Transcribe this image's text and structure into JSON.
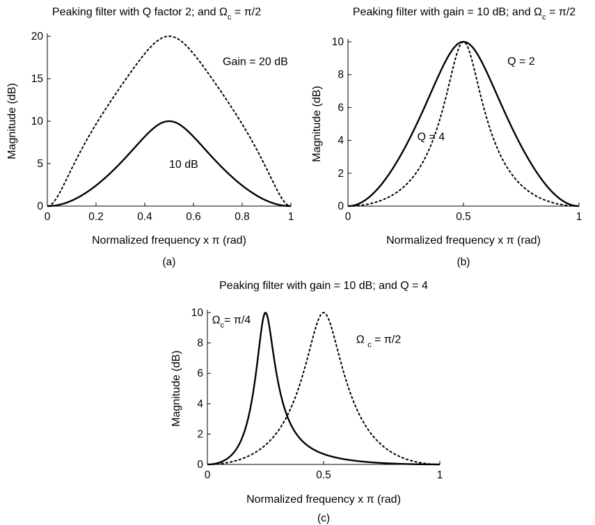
{
  "chart_data": [
    {
      "id": "a",
      "type": "line",
      "title": "Peaking filter with Q factor 2; and Ωc = π/2",
      "title_parts": {
        "pre": "Peaking filter with Q factor 2; and Ω",
        "sub": "c",
        "post": " = π/2"
      },
      "xlabel": "Normalized frequency x π (rad)",
      "ylabel": "Magnitude (dB)",
      "caption": "(a)",
      "xlim": [
        0,
        1
      ],
      "ylim": [
        0,
        20
      ],
      "xticks": [
        0,
        0.2,
        0.4,
        0.6,
        0.8,
        1
      ],
      "xtick_labels": [
        "0",
        "0.2",
        "0.4",
        "0.6",
        "0.8",
        "1"
      ],
      "yticks": [
        0,
        5,
        10,
        15,
        20
      ],
      "ytick_labels": [
        "0",
        "5",
        "10",
        "15",
        "20"
      ],
      "grid": false,
      "series": [
        {
          "name": "Gain = 20 dB",
          "style": "dashed",
          "gain_db": 20,
          "q": 2,
          "center": 0.5
        },
        {
          "name": "10 dB",
          "style": "solid",
          "gain_db": 10,
          "q": 2,
          "center": 0.5
        }
      ],
      "annotations": [
        {
          "text": "Gain = 20 dB",
          "x": 0.72,
          "y": 16.6
        },
        {
          "text": "10 dB",
          "x": 0.5,
          "y": 4.5
        }
      ]
    },
    {
      "id": "b",
      "type": "line",
      "title": "Peaking filter with gain = 10 dB; and Ωc = π/2",
      "title_parts": {
        "pre": "Peaking filter with gain = 10 dB; and Ω",
        "sub": "c",
        "post": " = π/2"
      },
      "xlabel": "Normalized frequency  x π (rad)",
      "ylabel": "Magnitude (dB)",
      "caption": "(b)",
      "xlim": [
        0,
        1
      ],
      "ylim": [
        0,
        10
      ],
      "xticks": [
        0,
        0.5,
        1
      ],
      "xtick_labels": [
        "0",
        "0.5",
        "1"
      ],
      "yticks": [
        0,
        2,
        4,
        6,
        8,
        10
      ],
      "ytick_labels": [
        "0",
        "2",
        "4",
        "6",
        "8",
        "10"
      ],
      "grid": false,
      "series": [
        {
          "name": "Q = 2",
          "style": "solid",
          "gain_db": 10,
          "q": 2,
          "center": 0.5
        },
        {
          "name": "Q = 4",
          "style": "dashed",
          "gain_db": 10,
          "q": 4,
          "center": 0.5
        }
      ],
      "annotations": [
        {
          "text": "Q = 2",
          "x": 0.69,
          "y": 8.6
        },
        {
          "text": "Q = 4",
          "x": 0.3,
          "y": 4.0
        }
      ]
    },
    {
      "id": "c",
      "type": "line",
      "title": "Peaking filter with gain = 10 dB; and Q = 4",
      "title_parts": {
        "pre": "Peaking filter with gain = 10 dB; and Q = 4",
        "sub": "",
        "post": ""
      },
      "xlabel": "Normalized frequency x π (rad)",
      "ylabel": "Magnitude (dB)",
      "caption": "(c)",
      "xlim": [
        0,
        1
      ],
      "ylim": [
        0,
        10
      ],
      "xticks": [
        0,
        0.5,
        1
      ],
      "xtick_labels": [
        "0",
        "0.5",
        "1"
      ],
      "yticks": [
        0,
        2,
        4,
        6,
        8,
        10
      ],
      "ytick_labels": [
        "0",
        "2",
        "4",
        "6",
        "8",
        "10"
      ],
      "grid": false,
      "series": [
        {
          "name": "Ωc = π/4",
          "style": "solid",
          "gain_db": 10,
          "q": 4,
          "center": 0.25
        },
        {
          "name": "Ωc = π/2",
          "style": "dashed",
          "gain_db": 10,
          "q": 4,
          "center": 0.5
        }
      ],
      "annotations": [
        {
          "text": "Ωc= π/4",
          "pre": "Ω",
          "sub": "c",
          "post": "= π/4",
          "x": 0.02,
          "y": 9.3
        },
        {
          "text": "Ωc = π/2",
          "pre": "Ω ",
          "sub": "c",
          "post": " = π/2",
          "x": 0.64,
          "y": 8.0
        }
      ]
    }
  ]
}
